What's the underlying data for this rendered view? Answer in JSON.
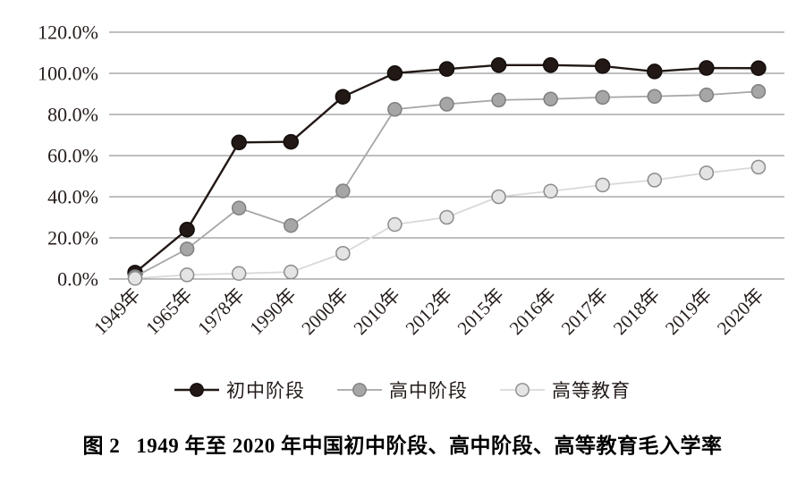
{
  "page": {
    "background": "#ffffff"
  },
  "chart_data": {
    "type": "line",
    "title": "",
    "caption": {
      "prefix": "图 2",
      "text": "1949 年至 2020 年中国初中阶段、高中阶段、高等教育毛入学率"
    },
    "categories": [
      "1949年",
      "1965年",
      "1978年",
      "1990年",
      "2000年",
      "2010年",
      "2012年",
      "2015年",
      "2016年",
      "2017年",
      "2018年",
      "2019年",
      "2020年"
    ],
    "series": [
      {
        "name": "初中阶段",
        "values": [
          3.1,
          24.0,
          66.4,
          66.7,
          88.6,
          100.1,
          102.1,
          104.0,
          104.0,
          103.5,
          100.9,
          102.6,
          102.5
        ],
        "line_color": "#221815",
        "marker_fill": "#221815",
        "marker_stroke": "#120d0b"
      },
      {
        "name": "高中阶段",
        "values": [
          1.1,
          14.6,
          34.5,
          26.0,
          42.8,
          82.5,
          85.0,
          87.0,
          87.5,
          88.3,
          88.8,
          89.5,
          91.2
        ],
        "line_color": "#a6a6a6",
        "marker_fill": "#a6a6a6",
        "marker_stroke": "#7f7f7f"
      },
      {
        "name": "高等教育",
        "values": [
          0.3,
          2.0,
          2.7,
          3.4,
          12.5,
          26.5,
          30.0,
          40.0,
          42.7,
          45.7,
          48.1,
          51.6,
          54.4
        ],
        "line_color": "#d9d9d9",
        "marker_fill": "#e4e4e4",
        "marker_stroke": "#8c8c8c"
      }
    ],
    "ylim": [
      0,
      120
    ],
    "ytick_step": 20,
    "ytick_labels": [
      "0.0%",
      "20.0%",
      "40.0%",
      "60.0%",
      "80.0%",
      "100.0%",
      "120.0%"
    ],
    "xlabel": "",
    "ylabel": "",
    "grid": "horizontal",
    "gridline_color": "#7f7f7f",
    "legend_position": "bottom"
  }
}
